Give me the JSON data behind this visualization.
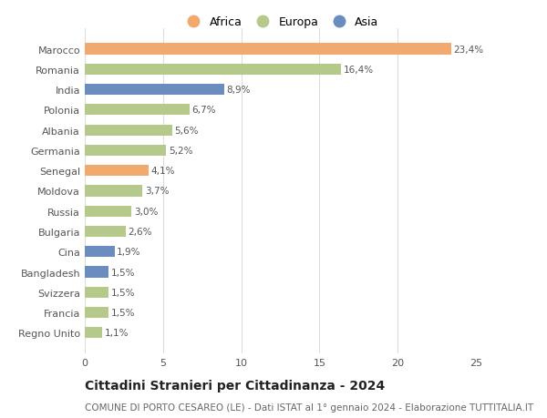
{
  "countries": [
    "Marocco",
    "Romania",
    "India",
    "Polonia",
    "Albania",
    "Germania",
    "Senegal",
    "Moldova",
    "Russia",
    "Bulgaria",
    "Cina",
    "Bangladesh",
    "Svizzera",
    "Francia",
    "Regno Unito"
  ],
  "values": [
    23.4,
    16.4,
    8.9,
    6.7,
    5.6,
    5.2,
    4.1,
    3.7,
    3.0,
    2.6,
    1.9,
    1.5,
    1.5,
    1.5,
    1.1
  ],
  "labels": [
    "23,4%",
    "16,4%",
    "8,9%",
    "6,7%",
    "5,6%",
    "5,2%",
    "4,1%",
    "3,7%",
    "3,0%",
    "2,6%",
    "1,9%",
    "1,5%",
    "1,5%",
    "1,5%",
    "1,1%"
  ],
  "continents": [
    "Africa",
    "Europa",
    "Asia",
    "Europa",
    "Europa",
    "Europa",
    "Africa",
    "Europa",
    "Europa",
    "Europa",
    "Asia",
    "Asia",
    "Europa",
    "Europa",
    "Europa"
  ],
  "colors": {
    "Africa": "#F2A96E",
    "Europa": "#B5C98A",
    "Asia": "#6B8CBE"
  },
  "title": "Cittadini Stranieri per Cittadinanza - 2024",
  "subtitle": "COMUNE DI PORTO CESAREO (LE) - Dati ISTAT al 1° gennaio 2024 - Elaborazione TUTTITALIA.IT",
  "xlim": [
    0,
    25
  ],
  "xticks": [
    0,
    5,
    10,
    15,
    20,
    25
  ],
  "background_color": "#ffffff",
  "grid_color": "#dddddd",
  "bar_height": 0.55,
  "label_fontsize": 7.5,
  "title_fontsize": 10,
  "subtitle_fontsize": 7.5,
  "tick_fontsize": 8,
  "legend_fontsize": 9
}
